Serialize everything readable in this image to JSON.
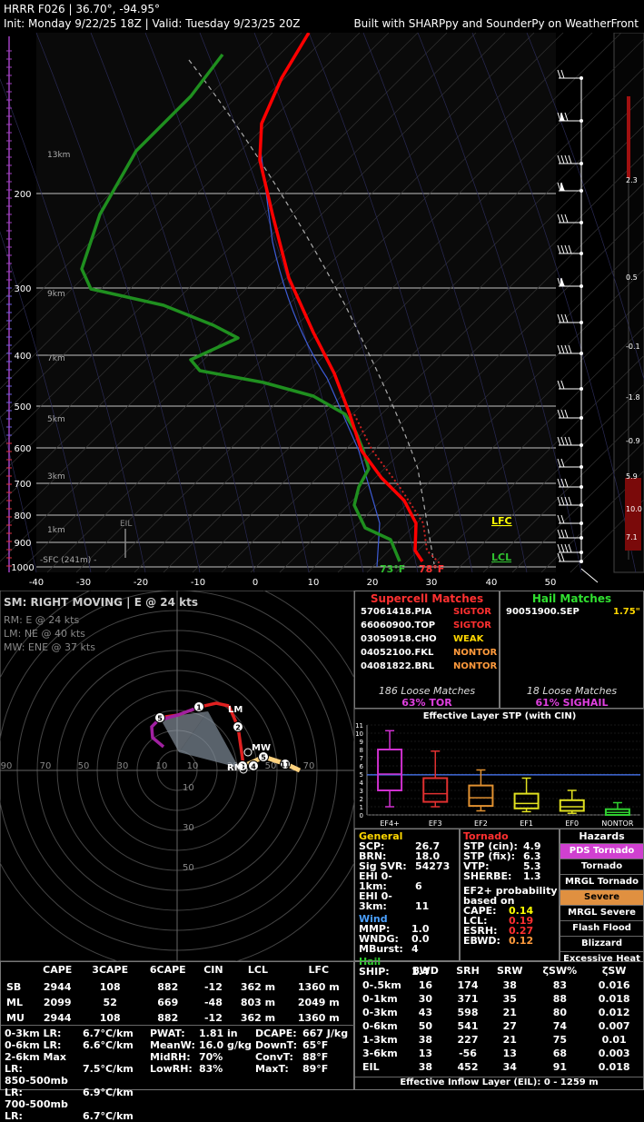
{
  "header": {
    "line1": "HRRR F026 | 36.70°, -94.95°",
    "line2": "Init: Monday 9/22/25 18Z | Valid: Tuesday 9/23/25 20Z",
    "credit": "Built with SHARPpy and SounderPy on WeatherFront"
  },
  "skewt": {
    "pressure_ticks": [
      "200",
      "300",
      "400",
      "500",
      "600",
      "700",
      "800",
      "900",
      "1000"
    ],
    "height_labels": [
      "13km",
      "9km",
      "7km",
      "5km",
      "3km",
      "1km"
    ],
    "sfc_label": "-SFC (241m) -",
    "temp_ticks": [
      "-40",
      "-30",
      "-20",
      "-10",
      "0",
      "10",
      "20",
      "30",
      "40",
      "50"
    ],
    "eil_label": "EIL",
    "lfc_label": "LFC",
    "lcl_label": "LCL",
    "sfc_td": "73°F",
    "sfc_t": "78°F",
    "right_axis_labels": [
      "2.3",
      "0.5",
      "-0.1",
      "-1.8",
      "-0.9",
      "5.9",
      "10.0",
      "7.1"
    ],
    "colors": {
      "temp": "#ff0000",
      "dew": "#1f8f1f",
      "parcel": "#aaaaaa",
      "wetbulb": "#3d5bd6",
      "virtual": "#cc2222"
    }
  },
  "hodo": {
    "title": "SM: RIGHT MOVING | E @ 24 kts",
    "rm": "RM: E @ 24 kts",
    "lm": "LM: NE @ 40 kts",
    "mw": "MW: ENE @ 37 kts",
    "ring_labels": [
      "90",
      "70",
      "50",
      "30",
      "10",
      "10",
      "30",
      "50",
      "70"
    ],
    "y_ring_labels": [
      "10",
      "30",
      "50"
    ],
    "point_labels": [
      "1",
      "2",
      "3",
      "4",
      "5",
      "11",
      "5"
    ],
    "marker_labels": [
      "LM",
      "MW",
      "RM"
    ]
  },
  "supercell": {
    "title": "Supercell Matches",
    "rows": [
      {
        "id": "57061418.PIA",
        "cat": "SIGTOR",
        "color": "#ff3030"
      },
      {
        "id": "66060900.TOP",
        "cat": "SIGTOR",
        "color": "#ff3030"
      },
      {
        "id": "03050918.CHO",
        "cat": "WEAK",
        "color": "#ffd700"
      },
      {
        "id": "04052100.FKL",
        "cat": "NONTOR",
        "color": "#ff9a3c"
      },
      {
        "id": "04081822.BRL",
        "cat": "NONTOR",
        "color": "#ff9a3c"
      }
    ],
    "loose": "186 Loose Matches",
    "prob": "63% TOR"
  },
  "hail": {
    "title": "Hail Matches",
    "rows": [
      {
        "id": "90051900.SEP",
        "size": "1.75\""
      }
    ],
    "loose": "18 Loose Matches",
    "prob": "61% SIGHAIL"
  },
  "stp": {
    "title": "Effective Layer STP (with CIN)",
    "y_ticks": [
      "11",
      "10",
      "9",
      "8",
      "7",
      "6",
      "5",
      "4",
      "3",
      "2",
      "1",
      "0"
    ],
    "categories": [
      "EF4+",
      "EF3",
      "EF2",
      "EF1",
      "EF0",
      "NONTOR"
    ]
  },
  "chart_data": {
    "type": "box",
    "title": "Effective Layer STP (with CIN)",
    "categories": [
      "EF4+",
      "EF3",
      "EF2",
      "EF1",
      "EF0",
      "NONTOR"
    ],
    "colors": [
      "#d030d0",
      "#e03030",
      "#e09030",
      "#e0e020",
      "#e0e020",
      "#30d030"
    ],
    "boxes": [
      {
        "low": 1,
        "q1": 3,
        "median": 5,
        "q3": 8,
        "high": 10.3
      },
      {
        "low": 1,
        "q1": 1.6,
        "median": 2.6,
        "q3": 4.5,
        "high": 7.8
      },
      {
        "low": 0.5,
        "q1": 1.1,
        "median": 2.1,
        "q3": 3.6,
        "high": 5.5
      },
      {
        "low": 0.4,
        "q1": 0.8,
        "median": 1.4,
        "q3": 2.6,
        "high": 4.5
      },
      {
        "low": 0.2,
        "q1": 0.5,
        "median": 1,
        "q3": 1.8,
        "high": 3
      },
      {
        "low": 0,
        "q1": 0,
        "median": 0.3,
        "q3": 0.7,
        "high": 1.5
      }
    ],
    "ylim": [
      0,
      11
    ],
    "reference_line": 4.9
  },
  "general": {
    "title": "General",
    "rows": [
      {
        "k": "SCP:",
        "v": "26.7"
      },
      {
        "k": "BRN:",
        "v": "18.0"
      },
      {
        "k": "Sig SVR:",
        "v": "54273"
      },
      {
        "k": "EHI 0-1km:",
        "v": "6"
      },
      {
        "k": "EHI 0-3km:",
        "v": "11"
      }
    ]
  },
  "wind": {
    "title": "Wind",
    "rows": [
      {
        "k": "MMP:",
        "v": "1.0"
      },
      {
        "k": "WNDG:",
        "v": "0.0"
      },
      {
        "k": "MBurst:",
        "v": "4"
      }
    ]
  },
  "hailsec": {
    "title": "Hail",
    "k": "SHIP:",
    "v": "1.4"
  },
  "tornado": {
    "title": "Tornado",
    "rows": [
      {
        "k": "STP (cin):",
        "v": "4.9"
      },
      {
        "k": "STP (fix):",
        "v": "6.3"
      },
      {
        "k": "VTP:",
        "v": "5.3"
      },
      {
        "k": "SHERBE:",
        "v": "1.3"
      }
    ],
    "ef2_title": "EF2+ probability based on",
    "ef2_rows": [
      {
        "k": "CAPE:",
        "v": "0.14",
        "c": "#ffff00"
      },
      {
        "k": "LCL:",
        "v": "0.19",
        "c": "#ff3030"
      },
      {
        "k": "ESRH:",
        "v": "0.27",
        "c": "#ff3030"
      },
      {
        "k": "EBWD:",
        "v": "0.12",
        "c": "#ff9a3c"
      }
    ]
  },
  "hazards": {
    "title": "Hazards",
    "items": [
      {
        "label": "PDS Tornado",
        "bg": "#d040d0",
        "fg": "#ffffff"
      },
      {
        "label": "Tornado",
        "bg": "#000000",
        "fg": "#ffffff"
      },
      {
        "label": "MRGL Tornado",
        "bg": "#000000",
        "fg": "#ffffff"
      },
      {
        "label": "Severe",
        "bg": "#e09040",
        "fg": "#000000"
      },
      {
        "label": "MRGL Severe",
        "bg": "#000000",
        "fg": "#ffffff"
      },
      {
        "label": "Flash Flood",
        "bg": "#000000",
        "fg": "#ffffff"
      },
      {
        "label": "Blizzard",
        "bg": "#000000",
        "fg": "#ffffff"
      },
      {
        "label": "Excessive Heat",
        "bg": "#000000",
        "fg": "#ffffff"
      }
    ]
  },
  "thermo": {
    "headers": [
      "CAPE",
      "3CAPE",
      "6CAPE",
      "CIN",
      "LCL",
      "LFC"
    ],
    "rows": [
      {
        "name": "SB",
        "vals": [
          "2944",
          "108",
          "882",
          "-12",
          "362 m",
          "1360 m"
        ]
      },
      {
        "name": "ML",
        "vals": [
          "2099",
          "52",
          "669",
          "-48",
          "803 m",
          "2049 m"
        ]
      },
      {
        "name": "MU",
        "vals": [
          "2944",
          "108",
          "882",
          "-12",
          "362 m",
          "1360 m"
        ]
      }
    ],
    "lapse": [
      {
        "k": "0-3km LR:",
        "v": "6.7°C/km"
      },
      {
        "k": "0-6km LR:",
        "v": "6.6°C/km"
      },
      {
        "k": "2-6km Max LR:",
        "v": "7.5°C/km"
      },
      {
        "k": "850-500mb LR:",
        "v": "6.9°C/km"
      },
      {
        "k": "700-500mb LR:",
        "v": "6.7°C/km"
      }
    ],
    "moist": [
      {
        "k": "PWAT:",
        "v": "1.81 in"
      },
      {
        "k": "MeanW:",
        "v": "16.0 g/kg"
      },
      {
        "k": "MidRH:",
        "v": "70%"
      },
      {
        "k": "LowRH:",
        "v": "83%"
      }
    ],
    "misc": [
      {
        "k": "DCAPE:",
        "v": "667 J/kg"
      },
      {
        "k": "DownT:",
        "v": "65°F"
      },
      {
        "k": "ConvT:",
        "v": "88°F"
      },
      {
        "k": "MaxT:",
        "v": "89°F"
      }
    ]
  },
  "kinematic": {
    "headers": [
      "BWD",
      "SRH",
      "SRW",
      "ζSW%",
      "ζSW"
    ],
    "rows": [
      {
        "name": "0-.5km",
        "vals": [
          "16",
          "174",
          "38",
          "83",
          "0.016"
        ]
      },
      {
        "name": "0-1km",
        "vals": [
          "30",
          "371",
          "35",
          "88",
          "0.018"
        ]
      },
      {
        "name": "0-3km",
        "vals": [
          "43",
          "598",
          "21",
          "80",
          "0.012"
        ]
      },
      {
        "name": "0-6km",
        "vals": [
          "50",
          "541",
          "27",
          "74",
          "0.007"
        ]
      },
      {
        "name": "1-3km",
        "vals": [
          "38",
          "227",
          "21",
          "75",
          "0.01"
        ]
      },
      {
        "name": "3-6km",
        "vals": [
          "13",
          "-56",
          "13",
          "68",
          "0.003"
        ]
      },
      {
        "name": "EIL",
        "vals": [
          "38",
          "452",
          "34",
          "91",
          "0.018"
        ]
      }
    ],
    "footer": "Effective Inflow Layer (EIL): 0 - 1259 m"
  }
}
